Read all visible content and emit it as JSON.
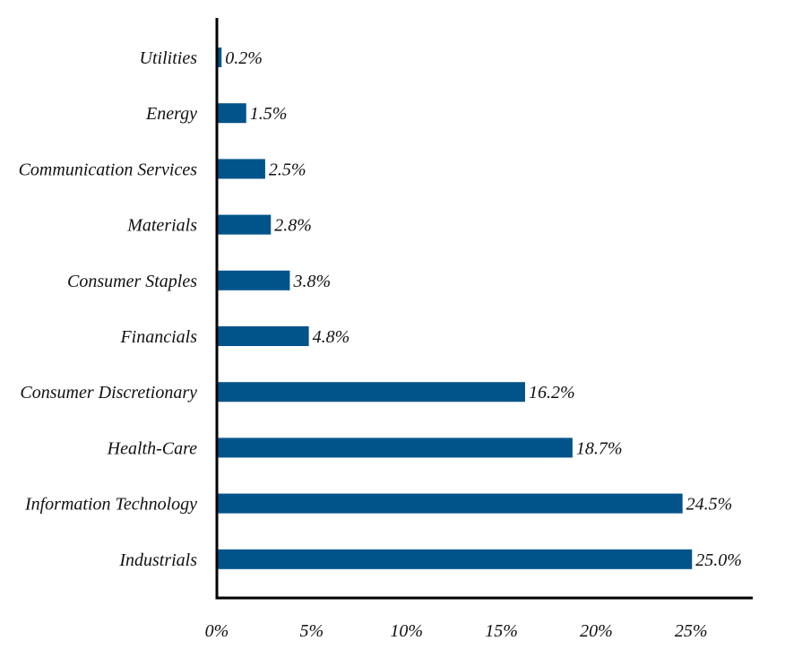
{
  "chart_data": {
    "type": "bar",
    "orientation": "horizontal",
    "categories": [
      "Utilities",
      "Energy",
      "Communication Services",
      "Materials",
      "Consumer Staples",
      "Financials",
      "Consumer Discretionary",
      "Health-Care",
      "Information Technology",
      "Industrials"
    ],
    "values": [
      0.2,
      1.5,
      2.5,
      2.8,
      3.8,
      4.8,
      16.2,
      18.7,
      24.5,
      25.0
    ],
    "value_labels": [
      "0.2%",
      "1.5%",
      "2.5%",
      "2.8%",
      "3.8%",
      "4.8%",
      "16.2%",
      "18.7%",
      "24.5%",
      "25.0%"
    ],
    "x_ticks": [
      "0%",
      "5%",
      "10%",
      "15%",
      "20%",
      "25%"
    ],
    "x_tick_values": [
      0,
      5,
      10,
      15,
      20,
      25
    ],
    "xlim": [
      0,
      28.2
    ],
    "xlabel": "",
    "ylabel": "",
    "title": "",
    "grid": false,
    "legend": "none",
    "bar_color": "#00548a",
    "axis_color": "#000000",
    "text_color": "#111111"
  }
}
